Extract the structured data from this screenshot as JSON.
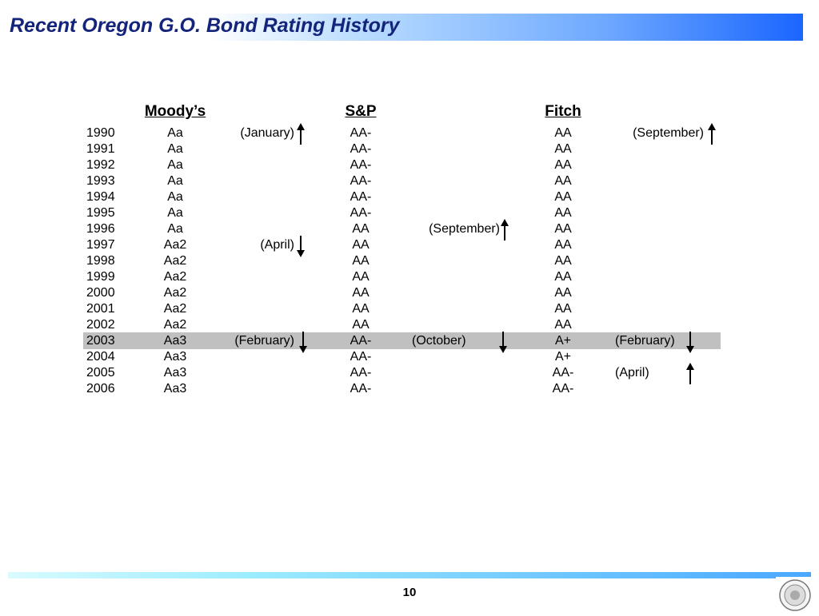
{
  "slide": {
    "title": "Recent Oregon G.O. Bond Rating History",
    "page_number": "10"
  },
  "agencies": {
    "moodys": "Moody’s",
    "sp": "S&P",
    "fitch": "Fitch"
  },
  "rows": [
    {
      "year": "1990",
      "moodys": "Aa",
      "moodys_note": "(January)",
      "moodys_dir": "up",
      "sp": "AA-",
      "sp_note": "",
      "sp_dir": "",
      "fitch": "AA",
      "fitch_note": "(September)",
      "fitch_dir": "up"
    },
    {
      "year": "1991",
      "moodys": "Aa",
      "moodys_note": "",
      "moodys_dir": "",
      "sp": "AA-",
      "sp_note": "",
      "sp_dir": "",
      "fitch": "AA",
      "fitch_note": "",
      "fitch_dir": ""
    },
    {
      "year": "1992",
      "moodys": "Aa",
      "moodys_note": "",
      "moodys_dir": "",
      "sp": "AA-",
      "sp_note": "",
      "sp_dir": "",
      "fitch": "AA",
      "fitch_note": "",
      "fitch_dir": ""
    },
    {
      "year": "1993",
      "moodys": "Aa",
      "moodys_note": "",
      "moodys_dir": "",
      "sp": "AA-",
      "sp_note": "",
      "sp_dir": "",
      "fitch": "AA",
      "fitch_note": "",
      "fitch_dir": ""
    },
    {
      "year": "1994",
      "moodys": "Aa",
      "moodys_note": "",
      "moodys_dir": "",
      "sp": "AA-",
      "sp_note": "",
      "sp_dir": "",
      "fitch": "AA",
      "fitch_note": "",
      "fitch_dir": ""
    },
    {
      "year": "1995",
      "moodys": "Aa",
      "moodys_note": "",
      "moodys_dir": "",
      "sp": "AA-",
      "sp_note": "",
      "sp_dir": "",
      "fitch": "AA",
      "fitch_note": "",
      "fitch_dir": ""
    },
    {
      "year": "1996",
      "moodys": "Aa",
      "moodys_note": "",
      "moodys_dir": "",
      "sp": "AA",
      "sp_note": "(September)",
      "sp_dir": "up",
      "fitch": "AA",
      "fitch_note": "",
      "fitch_dir": ""
    },
    {
      "year": "1997",
      "moodys": "Aa2",
      "moodys_note": "(April)",
      "moodys_dir": "down",
      "sp": "AA",
      "sp_note": "",
      "sp_dir": "",
      "fitch": "AA",
      "fitch_note": "",
      "fitch_dir": ""
    },
    {
      "year": "1998",
      "moodys": "Aa2",
      "moodys_note": "",
      "moodys_dir": "",
      "sp": "AA",
      "sp_note": "",
      "sp_dir": "",
      "fitch": "AA",
      "fitch_note": "",
      "fitch_dir": ""
    },
    {
      "year": "1999",
      "moodys": "Aa2",
      "moodys_note": "",
      "moodys_dir": "",
      "sp": "AA",
      "sp_note": "",
      "sp_dir": "",
      "fitch": "AA",
      "fitch_note": "",
      "fitch_dir": ""
    },
    {
      "year": "2000",
      "moodys": "Aa2",
      "moodys_note": "",
      "moodys_dir": "",
      "sp": "AA",
      "sp_note": "",
      "sp_dir": "",
      "fitch": "AA",
      "fitch_note": "",
      "fitch_dir": ""
    },
    {
      "year": "2001",
      "moodys": "Aa2",
      "moodys_note": "",
      "moodys_dir": "",
      "sp": "AA",
      "sp_note": "",
      "sp_dir": "",
      "fitch": "AA",
      "fitch_note": "",
      "fitch_dir": ""
    },
    {
      "year": "2002",
      "moodys": "Aa2",
      "moodys_note": "",
      "moodys_dir": "",
      "sp": "AA",
      "sp_note": "",
      "sp_dir": "",
      "fitch": "AA",
      "fitch_note": "",
      "fitch_dir": ""
    },
    {
      "year": "2003",
      "moodys": "Aa3",
      "moodys_note": "(February)",
      "moodys_dir": "down",
      "sp": "AA-",
      "sp_note": "(October)",
      "sp_dir": "down",
      "fitch": "A+",
      "fitch_note": "(February)",
      "fitch_dir": "down",
      "highlight": true
    },
    {
      "year": "2004",
      "moodys": "Aa3",
      "moodys_note": "",
      "moodys_dir": "",
      "sp": "AA-",
      "sp_note": "",
      "sp_dir": "",
      "fitch": "A+",
      "fitch_note": "",
      "fitch_dir": ""
    },
    {
      "year": "2005",
      "moodys": "Aa3",
      "moodys_note": "",
      "moodys_dir": "",
      "sp": "AA-",
      "sp_note": "",
      "sp_dir": "",
      "fitch": "AA-",
      "fitch_note": "(April)",
      "fitch_dir": "up"
    },
    {
      "year": "2006",
      "moodys": "Aa3",
      "moodys_note": "",
      "moodys_dir": "",
      "sp": "AA-",
      "sp_note": "",
      "sp_dir": "",
      "fitch": "AA-",
      "fitch_note": "",
      "fitch_dir": ""
    }
  ],
  "colors": {
    "title_text": "#13247a",
    "highlight_row": "#c0c0c0",
    "title_bar_end": "#1a66ff"
  },
  "icons": {
    "rating_up": "up-arrow-icon",
    "rating_down": "down-arrow-icon",
    "footer_logo": "state-seal-icon"
  }
}
